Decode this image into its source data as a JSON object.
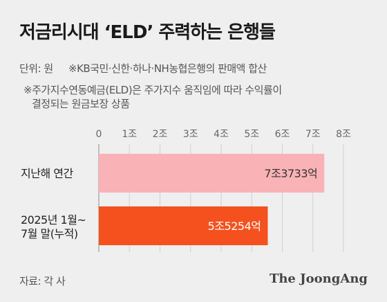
{
  "header": {
    "title": "저금리시대 ‘ELD’ 주력하는 은행들",
    "unit": "단위: 원",
    "scope": "※KB국민·신한·하나·NH농협은행의 판매액 합산",
    "note_line1": "※주가지수연동예금(ELD)은 주가지수 움직임에 따라 수익률이",
    "note_line2": "결정되는 원금보장 상품"
  },
  "chart_data": {
    "type": "bar",
    "orientation": "horizontal",
    "x_ticks": [
      "0",
      "1조",
      "2조",
      "3조",
      "4조",
      "5조",
      "6조",
      "7조",
      "8조"
    ],
    "xlim": [
      0,
      8
    ],
    "grid": true,
    "bars": [
      {
        "label_line1": "지난해 연간",
        "label_line2": "",
        "value": 7.3733,
        "value_label": "7조3733억",
        "color": "#f9b3b7",
        "label_color": "#333333"
      },
      {
        "label_line1": "2025년 1월~",
        "label_line2": "7월 말(누적)",
        "value": 5.5254,
        "value_label": "5조5254억",
        "color": "#f4511e",
        "label_color": "#ffffff"
      }
    ]
  },
  "footer": {
    "source": "자료: 각 사",
    "brand": "The JoongAng"
  }
}
